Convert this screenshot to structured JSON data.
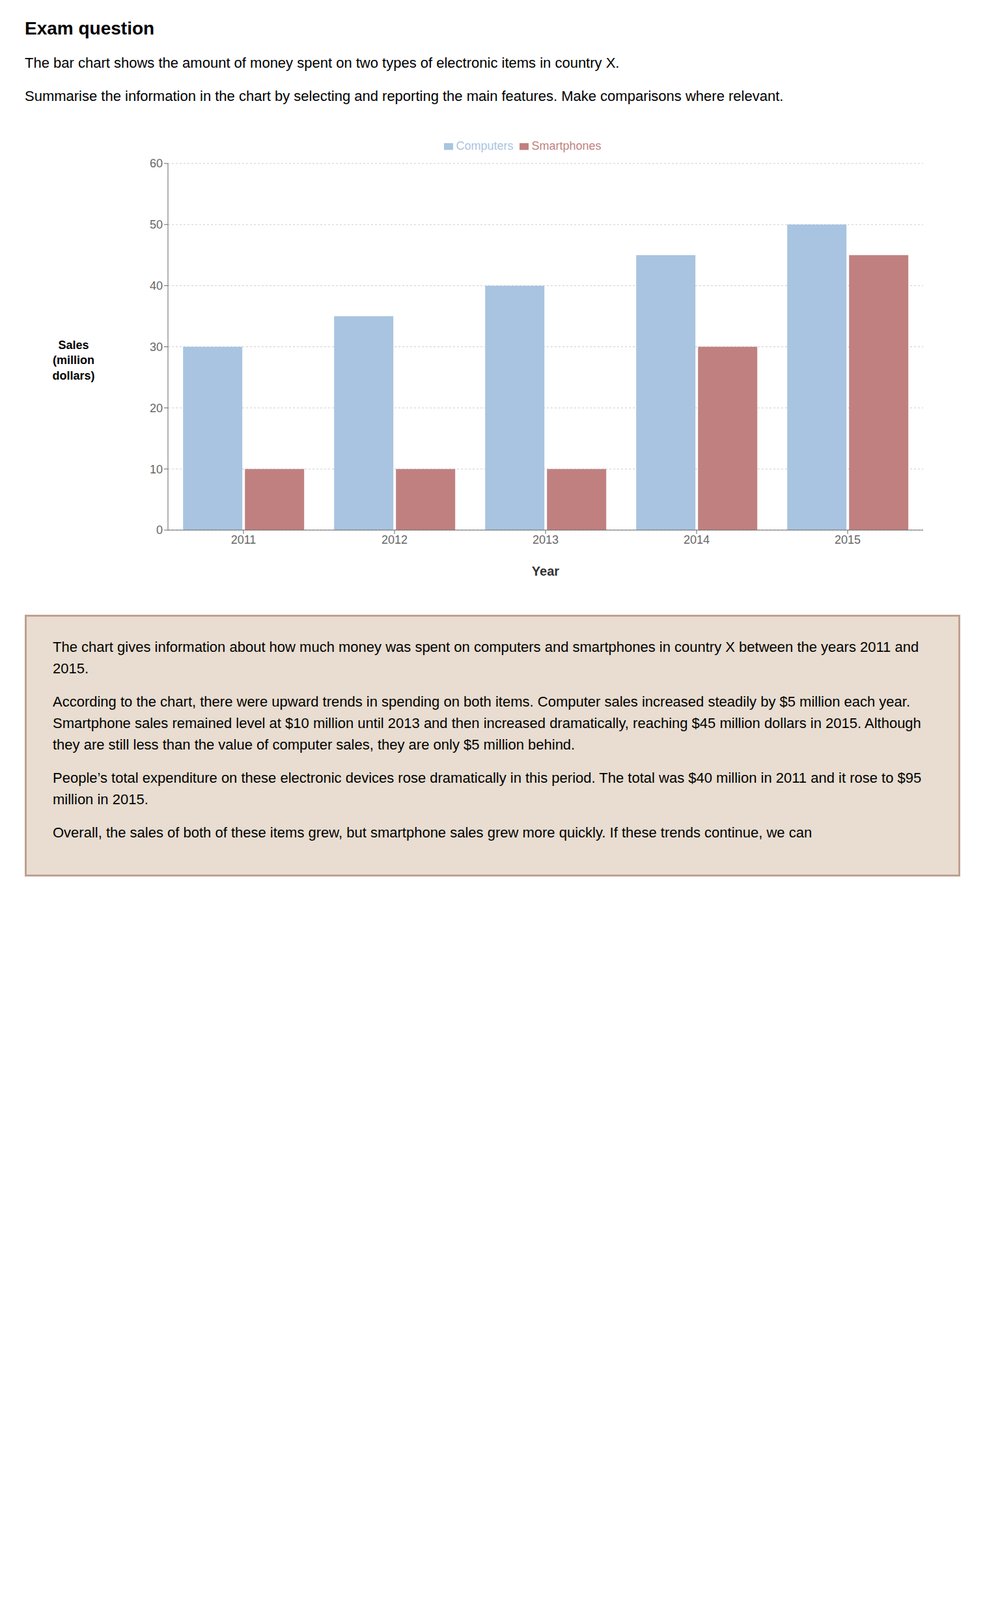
{
  "chart_data": {
    "type": "bar",
    "title": "Exam question",
    "annotations": [
      "The bar chart shows the amount of money spent on two types of electronic items in country X.",
      "Summarise the information in the chart by selecting and reporting the main features. Make comparisons where relevant.",
      "The chart gives information about how much money was spent on computers and smartphones in country X between the years 2011 and 2015.",
      "According to the chart, there were upward trends in spending on both items. Computer sales increased steadily by $5 million each year. Smartphone sales remained level at $10 million until 2013 and then increased dramatically, reaching $45 million dollars in 2015. Although they are still less than the value of computer sales, they are only $5 million behind.",
      "People’s total expenditure on these electronic devices rose dramatically in this period. The total was $40 million in 2011 and it rose to $95 million in 2015.",
      "Overall, the sales of both of these items grew, but smartphone sales grew more quickly. If these trends continue, we can"
    ],
    "xlabel": "Year",
    "ylabel": "Sales\n(million\ndollars)",
    "categories": [
      "2011",
      "2012",
      "2013",
      "2014",
      "2015"
    ],
    "series": [
      {
        "name": "Computers",
        "color": "#A8C4E0",
        "values": [
          30,
          35,
          40,
          45,
          50
        ]
      },
      {
        "name": "Smartphones",
        "color": "#C08080",
        "values": [
          10,
          10,
          10,
          30,
          45
        ]
      }
    ],
    "ylim": [
      0,
      60
    ],
    "yticks": [
      0,
      10,
      20,
      30,
      40,
      50,
      60
    ],
    "grid": true,
    "legend": "top"
  }
}
